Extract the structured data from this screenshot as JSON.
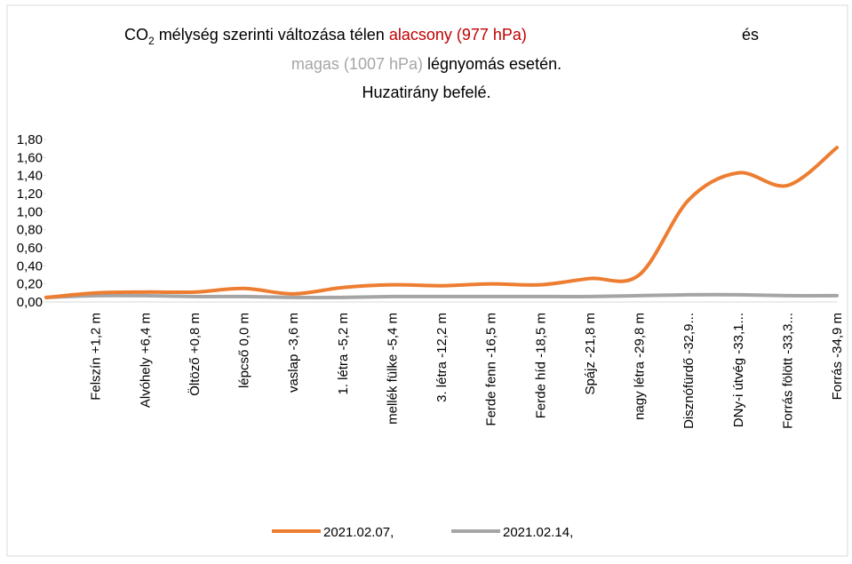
{
  "chart_data": {
    "type": "line",
    "title_lines": [
      [
        {
          "text": "CO",
          "color": "#000000"
        },
        {
          "text": "2",
          "color": "#000000",
          "subscript": true
        },
        {
          "text": " mélység szerinti változása télen ",
          "color": "#000000"
        },
        {
          "text": "alacsony (977 hPa)",
          "color": "#c00000"
        },
        {
          "text": "és",
          "color": "#000000"
        }
      ],
      [
        {
          "text": "magas (1007 hPa)",
          "color": "#a6a6a6"
        },
        {
          "text": " légnyomás esetén.",
          "color": "#000000"
        }
      ],
      [
        {
          "text": "Huzatirány befelé.",
          "color": "#000000"
        }
      ]
    ],
    "categories": [
      null,
      "Felszín +1,2 m",
      "Alvóhely +6,4 m",
      "Öltöző  +0,8 m",
      "lépcső  0,0 m",
      "vaslap -3,6 m",
      "1. létra  -5,2 m",
      "mellék fülke -5,4 m",
      "3. létra -12,2 m",
      "Ferde fenn -16,5 m",
      "Ferde híd -18,5 m",
      "Spájz  -21,8 m",
      "nagy létra -29,8 m",
      "Disznófürdő -32,9...",
      "DNy-i útvég -33,1...",
      "Forrás fölött -33,3...",
      "Forrás -34,9 m"
    ],
    "series": [
      {
        "name": "2021.02.07,",
        "color": "#ed7d31",
        "values": [
          0.05,
          0.1,
          0.11,
          0.11,
          0.15,
          0.09,
          0.16,
          0.19,
          0.18,
          0.2,
          0.19,
          0.26,
          0.3,
          1.13,
          1.43,
          1.29,
          1.71
        ]
      },
      {
        "name": "2021.02.14,",
        "color": "#a5a5a5",
        "values": [
          0.05,
          0.07,
          0.07,
          0.06,
          0.06,
          0.05,
          0.05,
          0.06,
          0.06,
          0.06,
          0.06,
          0.06,
          0.07,
          0.08,
          0.08,
          0.07,
          0.07
        ]
      }
    ],
    "ylim": [
      0,
      1.8
    ],
    "yticks": [
      {
        "value": 0,
        "label": "0,00"
      },
      {
        "value": 0.2,
        "label": "0,20"
      },
      {
        "value": 0.4,
        "label": "0,40"
      },
      {
        "value": 0.6,
        "label": "0,60"
      },
      {
        "value": 0.8,
        "label": "0,80"
      },
      {
        "value": 1.0,
        "label": "1,00"
      },
      {
        "value": 1.2,
        "label": "1,20"
      },
      {
        "value": 1.4,
        "label": "1,40"
      },
      {
        "value": 1.6,
        "label": "1,60"
      },
      {
        "value": 1.8,
        "label": "1,80"
      }
    ],
    "smooth": true,
    "grid": false,
    "legend": "bottom"
  }
}
